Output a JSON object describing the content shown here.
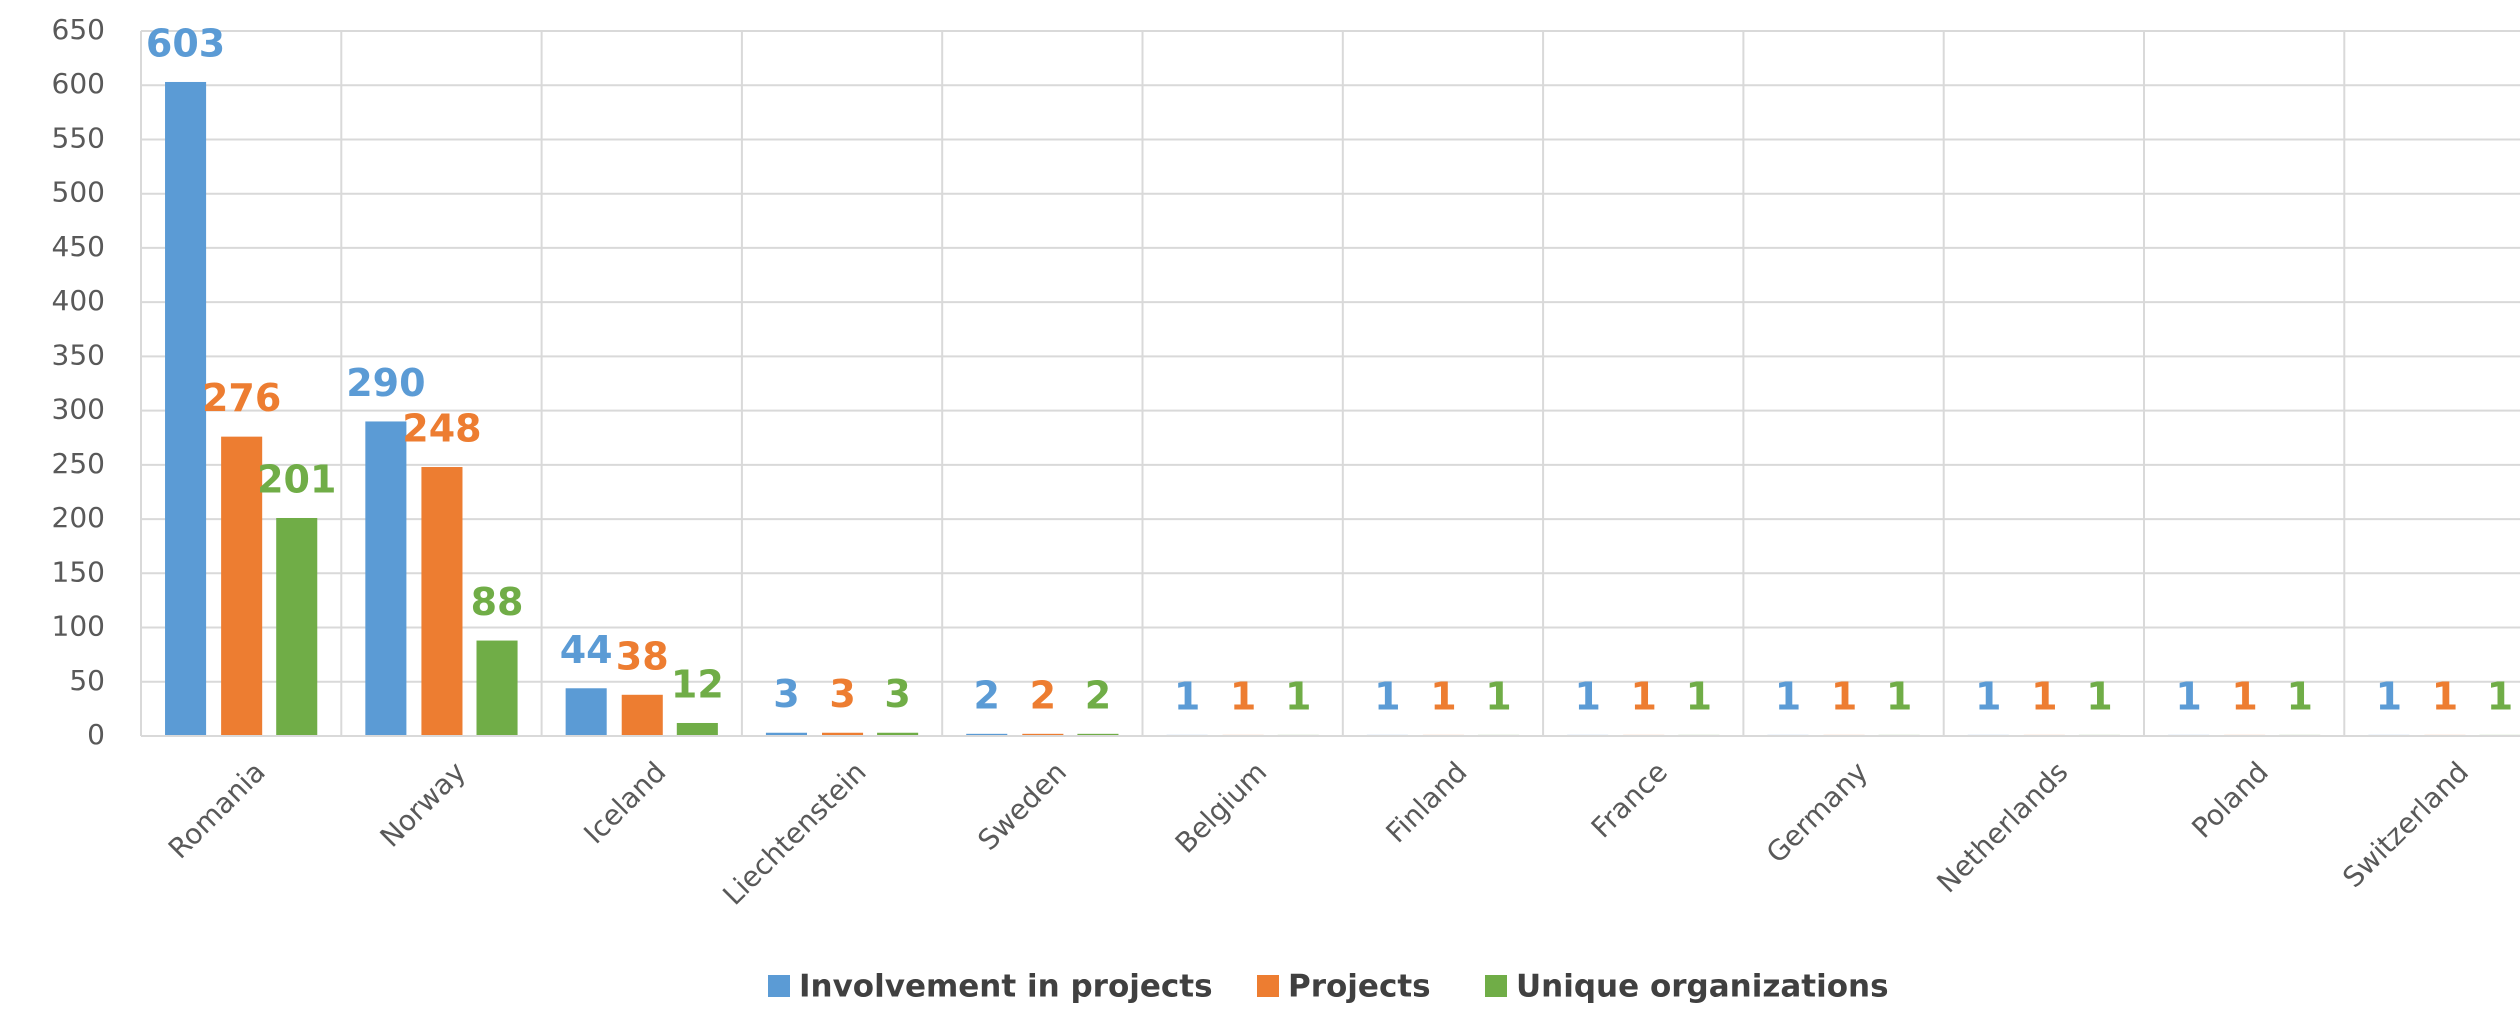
{
  "chart_data": {
    "type": "bar",
    "categories": [
      "Romania",
      "Norway",
      "Iceland",
      "Liechtenstein",
      "Sweden",
      "Belgium",
      "Finland",
      "France",
      "Germany",
      "Netherlands",
      "Poland",
      "Switzerland"
    ],
    "series": [
      {
        "name": "Involvement in projects",
        "color": "#5b9bd5",
        "values": [
          603,
          290,
          44,
          3,
          2,
          1,
          1,
          1,
          1,
          1,
          1,
          1
        ]
      },
      {
        "name": "Projects",
        "color": "#ed7d31",
        "values": [
          276,
          248,
          38,
          3,
          2,
          1,
          1,
          1,
          1,
          1,
          1,
          1
        ]
      },
      {
        "name": "Unique organizations",
        "color": "#70ad47",
        "values": [
          201,
          88,
          12,
          3,
          2,
          1,
          1,
          1,
          1,
          1,
          1,
          1
        ]
      }
    ],
    "ylim": [
      0,
      650
    ],
    "yticks": [
      0,
      50,
      100,
      150,
      200,
      250,
      300,
      350,
      400,
      450,
      500,
      550,
      600,
      650
    ],
    "grid": true,
    "legend": "bottom"
  }
}
